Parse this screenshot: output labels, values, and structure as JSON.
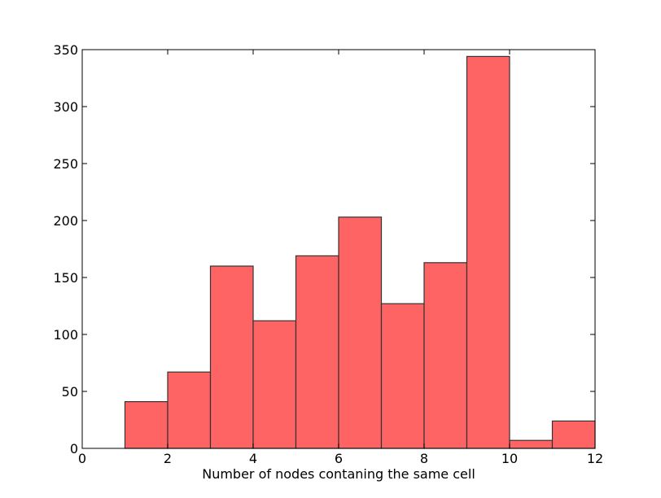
{
  "chart_data": {
    "type": "bar",
    "title": "",
    "xlabel": "Number of nodes contaning the same cell",
    "ylabel": "",
    "xlim": [
      0,
      12
    ],
    "ylim": [
      0,
      350
    ],
    "x_ticks": [
      "0",
      "2",
      "4",
      "6",
      "8",
      "10",
      "12"
    ],
    "y_ticks": [
      "0",
      "50",
      "100",
      "150",
      "200",
      "250",
      "300",
      "350"
    ],
    "bins": [
      {
        "x0": 1,
        "x1": 2,
        "value": 41
      },
      {
        "x0": 2,
        "x1": 3,
        "value": 67
      },
      {
        "x0": 3,
        "x1": 4,
        "value": 160
      },
      {
        "x0": 4,
        "x1": 5,
        "value": 112
      },
      {
        "x0": 5,
        "x1": 6,
        "value": 169
      },
      {
        "x0": 6,
        "x1": 7,
        "value": 203
      },
      {
        "x0": 7,
        "x1": 8,
        "value": 127
      },
      {
        "x0": 8,
        "x1": 9,
        "value": 163
      },
      {
        "x0": 9,
        "x1": 10,
        "value": 344
      },
      {
        "x0": 10,
        "x1": 11,
        "value": 7
      },
      {
        "x0": 11,
        "x1": 12,
        "value": 24
      }
    ],
    "bar_color": "#ff6464",
    "edge_color": "#333333",
    "grid": false,
    "legend": "none"
  }
}
